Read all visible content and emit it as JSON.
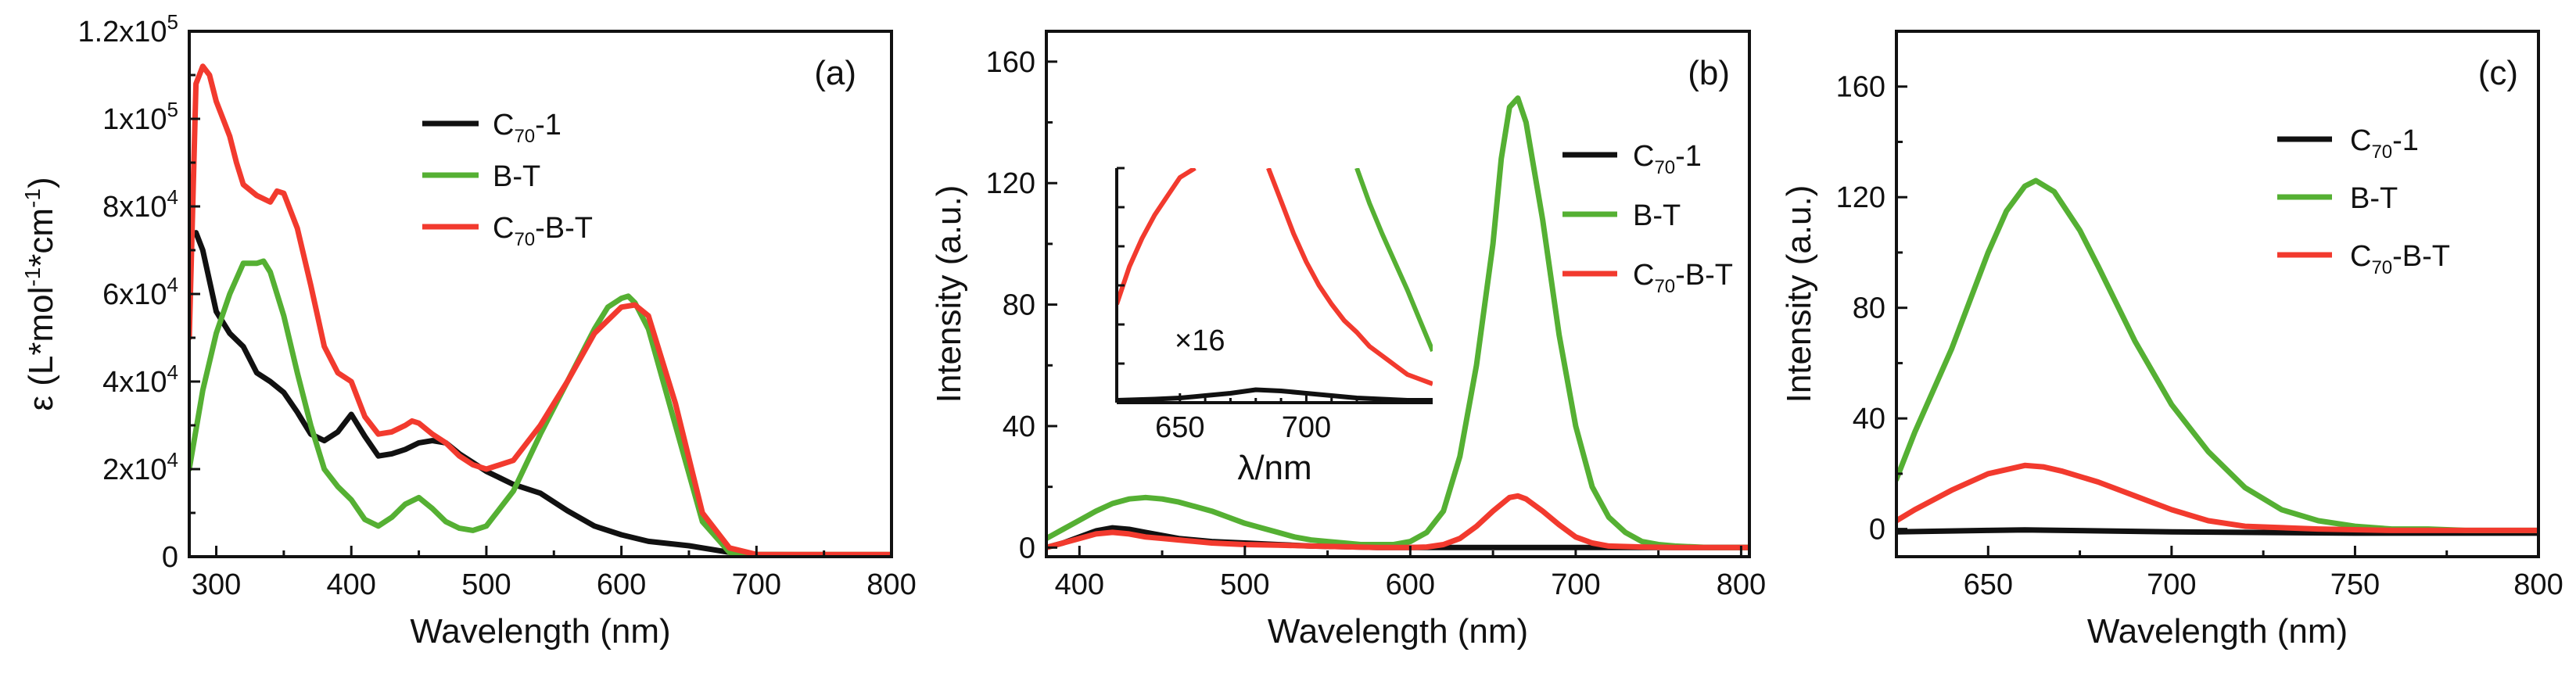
{
  "colors": {
    "C70-1": "#111111",
    "B-T": "#55b033",
    "C70-B-T": "#f23a2e"
  },
  "chart_data": [
    {
      "type": "line",
      "panel_label": "(a)",
      "xlabel": "Wavelength (nm)",
      "ylabel_prefix": "ε (L*mol",
      "ylabel_sup1": "-1",
      "ylabel_mid": "*cm",
      "ylabel_sup2": "-1",
      "ylabel_suffix": ")",
      "xlim": [
        280,
        800
      ],
      "ylim": [
        0,
        120000
      ],
      "xticks": [
        300,
        400,
        500,
        600,
        700,
        800
      ],
      "xtick_labels": [
        "300",
        "400",
        "500",
        "600",
        "700",
        "800"
      ],
      "yticks": [
        0,
        20000,
        40000,
        60000,
        80000,
        100000,
        120000
      ],
      "ytick_labels": [
        {
          "base": "0",
          "exp": ""
        },
        {
          "base": "2x10",
          "exp": "4"
        },
        {
          "base": "4x10",
          "exp": "4"
        },
        {
          "base": "6x10",
          "exp": "4"
        },
        {
          "base": "8x10",
          "exp": "4"
        },
        {
          "base": "1x10",
          "exp": "5"
        },
        {
          "base": "1.2x10",
          "exp": "5"
        }
      ],
      "legend_position": "upper-middle",
      "series": [
        {
          "key": "C70-1",
          "name_main": "C",
          "name_sub": "70",
          "name_tail": "-1",
          "x": [
            285,
            290,
            300,
            310,
            320,
            330,
            340,
            350,
            360,
            370,
            380,
            390,
            400,
            410,
            420,
            430,
            440,
            450,
            460,
            470,
            480,
            490,
            500,
            510,
            520,
            530,
            540,
            560,
            580,
            600,
            620,
            650,
            680,
            700,
            800
          ],
          "y": [
            74000,
            70000,
            56000,
            51000,
            48000,
            42000,
            40000,
            37500,
            33000,
            28000,
            26500,
            28500,
            32500,
            27500,
            23000,
            23500,
            24500,
            26000,
            26500,
            26000,
            23500,
            21500,
            19500,
            18000,
            16500,
            15500,
            14500,
            10500,
            7000,
            5000,
            3500,
            2500,
            1000,
            500,
            300
          ]
        },
        {
          "key": "B-T",
          "name_main": "B-T",
          "name_sub": "",
          "name_tail": "",
          "x": [
            280,
            290,
            300,
            310,
            320,
            330,
            335,
            340,
            350,
            360,
            370,
            380,
            390,
            400,
            410,
            420,
            430,
            440,
            450,
            460,
            470,
            480,
            490,
            500,
            520,
            540,
            560,
            580,
            590,
            600,
            605,
            610,
            620,
            640,
            660,
            680,
            700,
            800
          ],
          "y": [
            20000,
            38000,
            51000,
            60000,
            67000,
            67000,
            67500,
            65000,
            55000,
            42000,
            30000,
            20000,
            16000,
            13000,
            8500,
            7000,
            9000,
            12000,
            13500,
            11000,
            8000,
            6500,
            6000,
            7000,
            15000,
            28000,
            40000,
            52000,
            57000,
            59000,
            59500,
            58000,
            52000,
            30000,
            8000,
            1000,
            500,
            500
          ]
        },
        {
          "key": "C70-B-T",
          "name_main": "C",
          "name_sub": "70",
          "name_tail": "-B-T",
          "x": [
            280,
            285,
            290,
            295,
            300,
            305,
            310,
            315,
            320,
            330,
            340,
            345,
            350,
            360,
            370,
            380,
            390,
            400,
            410,
            420,
            430,
            440,
            445,
            450,
            460,
            470,
            480,
            490,
            500,
            520,
            540,
            560,
            580,
            600,
            610,
            620,
            640,
            660,
            680,
            700,
            800
          ],
          "y": [
            50000,
            108000,
            112000,
            110000,
            104000,
            100000,
            96000,
            90000,
            85000,
            82500,
            81000,
            83500,
            83000,
            75000,
            62000,
            48000,
            42000,
            40000,
            32000,
            28000,
            28500,
            30000,
            31000,
            30500,
            28000,
            26000,
            23000,
            21000,
            20000,
            22000,
            30000,
            40000,
            51000,
            57000,
            57500,
            55000,
            35000,
            10000,
            2000,
            500,
            500
          ]
        }
      ]
    },
    {
      "type": "line",
      "panel_label": "(b)",
      "xlabel": "Wavelength (nm)",
      "ylabel": "Intensity (a.u.)",
      "xlim": [
        380,
        805
      ],
      "ylim": [
        -3,
        170
      ],
      "xticks": [
        400,
        500,
        600,
        700,
        800
      ],
      "xtick_labels": [
        "400",
        "500",
        "600",
        "700",
        "800"
      ],
      "yticks": [
        0,
        40,
        80,
        120,
        160
      ],
      "ytick_labels": [
        "0",
        "40",
        "80",
        "120",
        "160"
      ],
      "legend_position": "middle-right",
      "series": [
        {
          "key": "C70-1",
          "name_main": "C",
          "name_sub": "70",
          "name_tail": "-1",
          "x": [
            380,
            390,
            400,
            410,
            420,
            430,
            440,
            450,
            460,
            480,
            500,
            520,
            540,
            560,
            580,
            600,
            700,
            805
          ],
          "y": [
            0,
            1.5,
            3.5,
            5.5,
            6.5,
            6,
            5,
            4,
            3,
            2,
            1.5,
            1,
            0.5,
            0.3,
            0,
            0,
            0,
            0
          ]
        },
        {
          "key": "B-T",
          "name_main": "B-T",
          "name_sub": "",
          "name_tail": "",
          "x": [
            380,
            390,
            400,
            410,
            420,
            430,
            440,
            450,
            460,
            470,
            480,
            490,
            500,
            510,
            520,
            530,
            540,
            550,
            560,
            570,
            580,
            590,
            600,
            610,
            620,
            630,
            640,
            650,
            655,
            660,
            665,
            670,
            680,
            690,
            700,
            710,
            720,
            730,
            740,
            750,
            760,
            780,
            805
          ],
          "y": [
            3,
            6,
            9,
            12,
            14.5,
            16,
            16.5,
            16,
            15,
            13.5,
            12,
            10,
            8,
            6.5,
            5,
            3.5,
            2.5,
            2,
            1.5,
            1,
            1,
            1,
            2,
            5,
            12,
            30,
            60,
            100,
            128,
            145,
            148,
            140,
            108,
            70,
            40,
            20,
            10,
            5,
            2,
            1,
            0.5,
            0,
            0
          ]
        },
        {
          "key": "C70-B-T",
          "name_main": "C",
          "name_sub": "70",
          "name_tail": "-B-T",
          "x": [
            380,
            390,
            400,
            410,
            420,
            430,
            440,
            450,
            460,
            480,
            500,
            520,
            540,
            560,
            580,
            600,
            610,
            620,
            630,
            640,
            650,
            660,
            665,
            670,
            680,
            690,
            700,
            710,
            720,
            740,
            760,
            805
          ],
          "y": [
            0,
            1.5,
            3,
            4.5,
            5,
            4.5,
            3.5,
            3,
            2.5,
            1.5,
            1,
            0.8,
            0.5,
            0.3,
            0,
            0,
            0.2,
            1,
            3,
            7,
            12,
            16.5,
            17,
            16,
            12,
            7.5,
            3.5,
            1.5,
            0.5,
            0.2,
            0,
            0
          ]
        }
      ],
      "inset": {
        "annotation": "×16",
        "xlabel": "λ/nm",
        "xlim": [
          625,
          750
        ],
        "ylim": [
          0,
          100
        ],
        "xticks": [
          650,
          700
        ],
        "xtick_labels": [
          "650",
          "700"
        ],
        "series": [
          {
            "key": "C70-1",
            "x": [
              625,
              640,
              650,
              660,
              670,
              680,
              690,
              700,
              710,
              720,
              730,
              740,
              750
            ],
            "y": [
              1,
              1.5,
              2,
              3,
              4,
              5.5,
              5,
              4,
              3,
              2,
              1.5,
              1,
              1
            ]
          },
          {
            "key": "C70-B-T",
            "x": [
              625,
              630,
              635,
              640,
              645,
              650,
              656
            ],
            "y": [
              42,
              58,
              70,
              80,
              88,
              96,
              100
            ]
          },
          {
            "key": "C70-B-T",
            "x": [
              685,
              690,
              695,
              700,
              705,
              710,
              715,
              720,
              725,
              730,
              735,
              740,
              745,
              750
            ],
            "y": [
              100,
              86,
              72,
              60,
              50,
              42,
              35,
              30,
              24,
              20,
              16,
              12,
              10,
              8
            ]
          },
          {
            "key": "B-T",
            "x": [
              720,
              725,
              730,
              735,
              740,
              745,
              750
            ],
            "y": [
              100,
              85,
              72,
              60,
              48,
              35,
              22
            ]
          }
        ]
      }
    },
    {
      "type": "line",
      "panel_label": "(c)",
      "xlabel": "Wavelength (nm)",
      "ylabel": "Intensity (a.u.)",
      "xlim": [
        625,
        800
      ],
      "ylim": [
        -10,
        180
      ],
      "xticks": [
        650,
        700,
        750,
        800
      ],
      "xtick_labels": [
        "650",
        "700",
        "750",
        "800"
      ],
      "yticks": [
        0,
        40,
        80,
        120,
        160
      ],
      "ytick_labels": [
        "0",
        "40",
        "80",
        "120",
        "160"
      ],
      "legend_position": "upper-middle",
      "series": [
        {
          "key": "C70-1",
          "name_main": "C",
          "name_sub": "70",
          "name_tail": "-1",
          "x": [
            625,
            650,
            660,
            700,
            750,
            800
          ],
          "y": [
            -1,
            -0.5,
            -0.3,
            -1,
            -1.5,
            -1.5
          ]
        },
        {
          "key": "B-T",
          "name_main": "B-T",
          "name_sub": "",
          "name_tail": "",
          "x": [
            625,
            630,
            640,
            650,
            655,
            660,
            663,
            668,
            675,
            680,
            690,
            700,
            710,
            720,
            730,
            740,
            750,
            760,
            770,
            780,
            800
          ],
          "y": [
            18,
            35,
            65,
            100,
            115,
            124,
            126,
            122,
            108,
            95,
            68,
            45,
            28,
            15,
            7,
            3,
            1,
            0,
            0,
            -0.5,
            -0.5
          ]
        },
        {
          "key": "C70-B-T",
          "name_main": "C",
          "name_sub": "70",
          "name_tail": "-B-T",
          "x": [
            625,
            630,
            640,
            650,
            660,
            665,
            670,
            680,
            690,
            700,
            710,
            720,
            740,
            760,
            800
          ],
          "y": [
            3,
            7,
            14,
            20,
            23,
            22.5,
            21,
            17,
            12,
            7,
            3,
            1,
            0,
            -0.5,
            -0.5
          ]
        }
      ]
    }
  ]
}
